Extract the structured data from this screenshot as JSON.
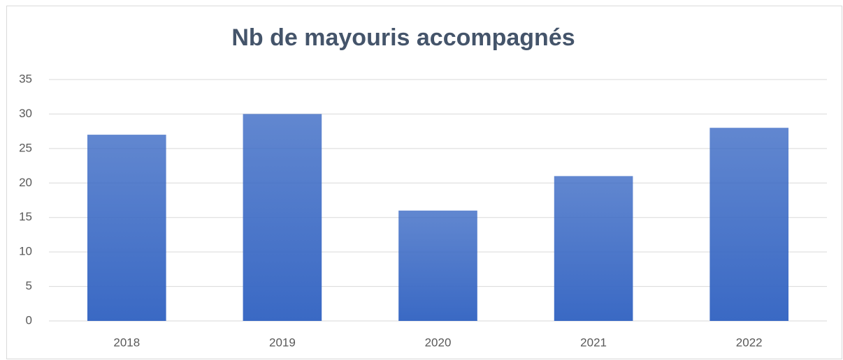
{
  "chart_data": {
    "type": "bar",
    "title": "Nb de mayouris accompagnés",
    "categories": [
      "2018",
      "2019",
      "2020",
      "2021",
      "2022"
    ],
    "values": [
      27,
      30,
      16,
      21,
      28
    ],
    "color": "#3a69c4",
    "ylim": [
      0,
      35
    ],
    "yticks": [
      0,
      5,
      10,
      15,
      20,
      25,
      30,
      35
    ],
    "grid": true
  }
}
